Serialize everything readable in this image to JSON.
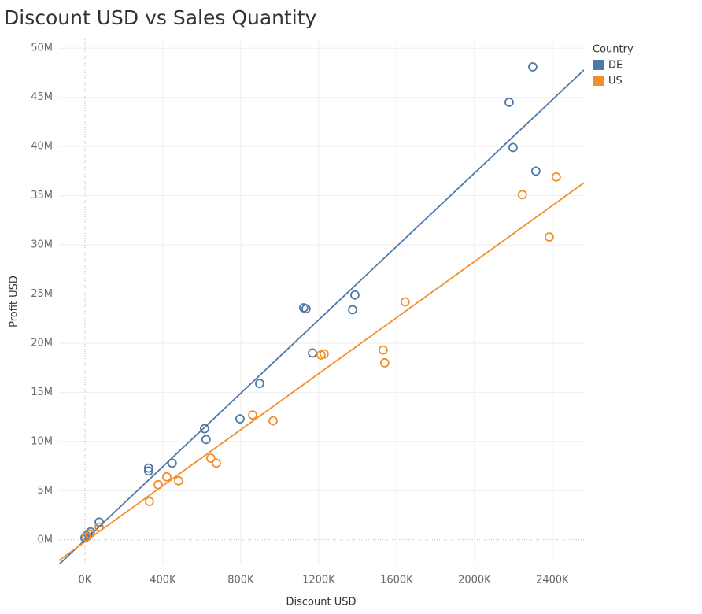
{
  "chart_data": {
    "type": "scatter",
    "title": "Discount USD vs Sales Quantity",
    "x_label": "Discount USD",
    "y_label": "Profit USD",
    "legend_title": "Country",
    "legend_position": "top-right",
    "grid": true,
    "xlim": [
      -133000,
      2562000
    ],
    "ylim": [
      -2500000,
      50900000
    ],
    "xticks": [
      {
        "value": 0,
        "label": "0K"
      },
      {
        "value": 400000,
        "label": "400K"
      },
      {
        "value": 800000,
        "label": "800K"
      },
      {
        "value": 1200000,
        "label": "1200K"
      },
      {
        "value": 1600000,
        "label": "1600K"
      },
      {
        "value": 2000000,
        "label": "2000K"
      },
      {
        "value": 2400000,
        "label": "2400K"
      }
    ],
    "yticks": [
      {
        "value": 0,
        "label": "0M"
      },
      {
        "value": 5000000,
        "label": "5M"
      },
      {
        "value": 10000000,
        "label": "10M"
      },
      {
        "value": 15000000,
        "label": "15M"
      },
      {
        "value": 20000000,
        "label": "20M"
      },
      {
        "value": 25000000,
        "label": "25M"
      },
      {
        "value": 30000000,
        "label": "30M"
      },
      {
        "value": 35000000,
        "label": "35M"
      },
      {
        "value": 40000000,
        "label": "40M"
      },
      {
        "value": 45000000,
        "label": "45M"
      },
      {
        "value": 50000000,
        "label": "50M"
      }
    ],
    "series": [
      {
        "name": "DE",
        "color": "#4e79a7",
        "x": [
          2299000,
          2178000,
          2198000,
          2315000,
          1386000,
          1374000,
          1123000,
          1135000,
          1168000,
          897000,
          796000,
          614000,
          622000,
          448000,
          327000,
          327000,
          73000,
          28000,
          16000,
          8000,
          0
        ],
        "values": [
          48100000,
          44500000,
          39900000,
          37500000,
          24900000,
          23400000,
          23600000,
          23500000,
          19000000,
          15900000,
          12300000,
          11300000,
          10200000,
          7800000,
          7300000,
          7000000,
          1800000,
          800000,
          600000,
          400000,
          200000
        ],
        "trend": {
          "slope": 18.66,
          "intercept": -20000
        }
      },
      {
        "name": "US",
        "color": "#f28e2b",
        "x": [
          2420000,
          2246000,
          2384000,
          1644000,
          1531000,
          1539000,
          1228000,
          1212000,
          861000,
          966000,
          646000,
          675000,
          420000,
          376000,
          481000,
          331000,
          73000,
          24000,
          8000
        ],
        "values": [
          36900000,
          35100000,
          30800000,
          24200000,
          19300000,
          18000000,
          18900000,
          18800000,
          12700000,
          12100000,
          8300000,
          7800000,
          6400000,
          5600000,
          6000000,
          3900000,
          1300000,
          600000,
          300000
        ],
        "trend": {
          "slope": 14.25,
          "intercept": -200000
        }
      }
    ]
  }
}
